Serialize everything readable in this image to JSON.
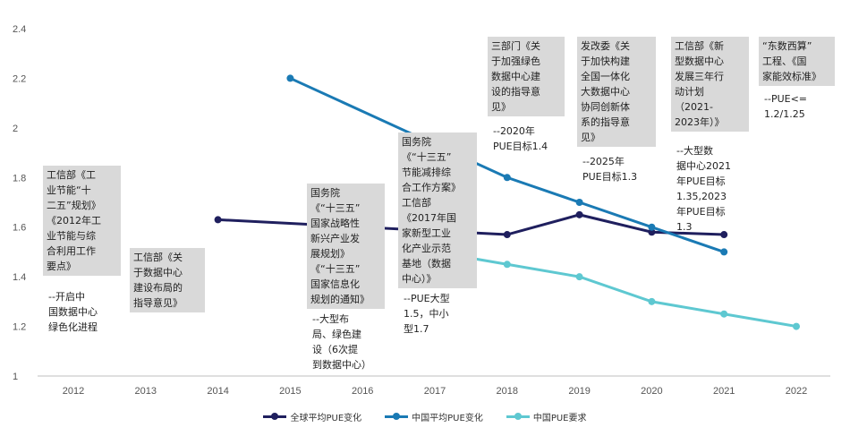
{
  "colors": {
    "global": "#1f1f5e",
    "china": "#1a7ab4",
    "requirement": "#5ec8d1"
  },
  "chart_data": {
    "type": "line",
    "x": [
      "2012",
      "2013",
      "2014",
      "2015",
      "2016",
      "2017",
      "2018",
      "2019",
      "2020",
      "2021",
      "2022"
    ],
    "ylim": [
      1,
      2.4
    ],
    "yticks": [
      "1",
      "1.2",
      "1.4",
      "1.6",
      "1.8",
      "2",
      "2.2",
      "2.4"
    ],
    "grid": false,
    "legend_position": "bottom",
    "series": [
      {
        "name": "全球平均PUE变化",
        "values": [
          null,
          null,
          1.63,
          null,
          null,
          null,
          1.57,
          1.65,
          1.58,
          1.57,
          null
        ]
      },
      {
        "name": "中国平均PUE变化",
        "values": [
          null,
          null,
          null,
          2.2,
          null,
          null,
          1.8,
          1.7,
          1.6,
          1.5,
          null
        ]
      },
      {
        "name": "中国PUE要求",
        "values": [
          null,
          null,
          null,
          null,
          null,
          1.5,
          1.45,
          1.4,
          1.3,
          1.25,
          1.2
        ]
      }
    ],
    "annotations": [
      {
        "box": "工信部《工\n业节能“十\n二五”规划》\n《2012年工\n业节能与综\n合利用工作\n要点》",
        "note": "--开启中\n国数据中心\n绿色化进程"
      },
      {
        "box": "工信部《关\n于数据中心\n建设布局的\n指导意见》",
        "note": ""
      },
      {
        "box": "国务院\n《“十三五”\n国家战略性\n新兴产业发\n展规划》\n《“十三五”\n国家信息化\n规划的通知》",
        "note": "--大型布\n局、绿色建\n设（6次提\n到数据中心）"
      },
      {
        "box": "国务院\n《“十三五”\n节能减排综\n合工作方案》\n工信部\n《2017年国\n家新型工业\n化产业示范\n基地（数据\n中心）》",
        "note": "--PUE大型\n1.5，中小\n型1.7"
      },
      {
        "box": "三部门《关\n于加强绿色\n数据中心建\n设的指导意\n见》",
        "note": "--2020年\nPUE目标1.4"
      },
      {
        "box": "发改委《关\n于加快构建\n全国一体化\n大数据中心\n协同创新体\n系的指导意\n见》",
        "note": "--2025年\nPUE目标1.3"
      },
      {
        "box": "工信部《新\n型数据中心\n发展三年行\n动计划\n（2021-\n2023年）》",
        "note": "--大型数\n据中心2021\n年PUE目标\n1.35,2023\n年PUE目标\n1.3"
      },
      {
        "box": "“东数西算”\n工程、《国\n家能效标准》",
        "note": "--PUE<=\n1.2/1.25"
      }
    ]
  }
}
